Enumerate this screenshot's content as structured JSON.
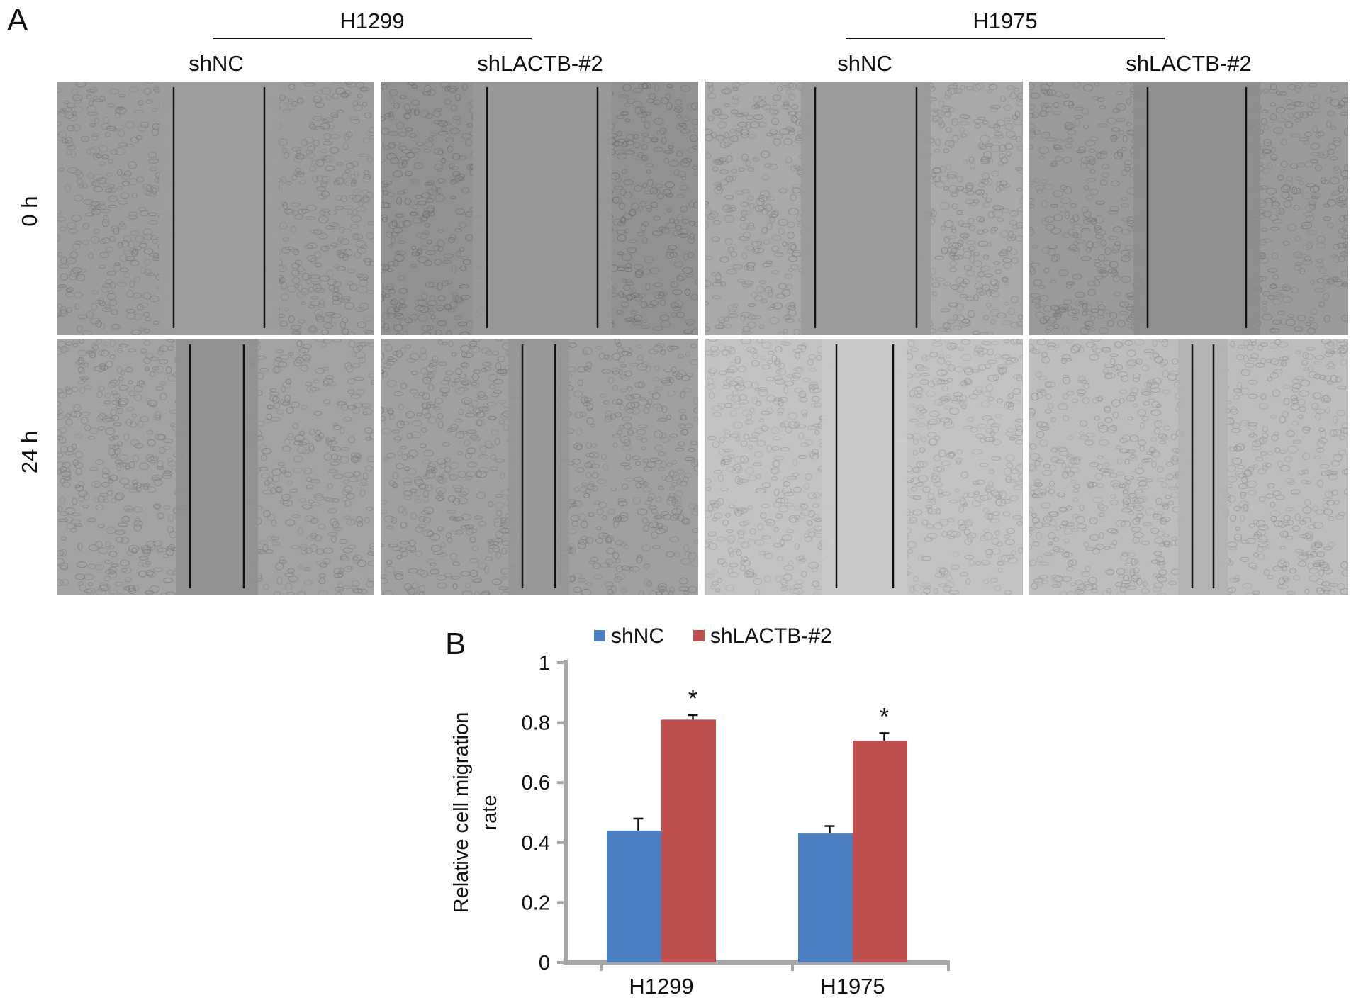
{
  "panel_a": {
    "letter": "A",
    "groups": [
      {
        "title": "H1299",
        "columns": [
          "shNC",
          "shLACTB-#2"
        ]
      },
      {
        "title": "H1975",
        "columns": [
          "shNC",
          "shLACTB-#2"
        ]
      }
    ],
    "rows": [
      "0 h",
      "24 h"
    ],
    "images": [
      {
        "row": 0,
        "col": 0,
        "tone": "#9c9c9c",
        "gap": "#9d9d9d",
        "cells": "#777777"
      },
      {
        "row": 0,
        "col": 1,
        "tone": "#929292",
        "gap": "#999999",
        "cells": "#6b6b6b"
      },
      {
        "row": 0,
        "col": 2,
        "tone": "#a9a9a9",
        "gap": "#9a9a9a",
        "cells": "#808080"
      },
      {
        "row": 0,
        "col": 3,
        "tone": "#9a9a9a",
        "gap": "#8d8d8d",
        "cells": "#747474"
      },
      {
        "row": 1,
        "col": 0,
        "tone": "#a3a3a3",
        "gap": "#8f8f8f",
        "cells": "#7a7a7a"
      },
      {
        "row": 1,
        "col": 1,
        "tone": "#a0a0a0",
        "gap": "#959595",
        "cells": "#777777"
      },
      {
        "row": 1,
        "col": 2,
        "tone": "#c3c3c3",
        "gap": "#cbcbcb",
        "cells": "#9a9a9a"
      },
      {
        "row": 1,
        "col": 3,
        "tone": "#bdbdbd",
        "gap": "#b3b3b3",
        "cells": "#909090"
      }
    ]
  },
  "panel_b": {
    "letter": "B"
  },
  "chart_data": {
    "type": "bar",
    "categories": [
      "H1299",
      "H1975"
    ],
    "series": [
      {
        "name": "shNC",
        "values": [
          0.44,
          0.43
        ],
        "errors": [
          0.04,
          0.025
        ],
        "color": "#4a7fc1"
      },
      {
        "name": "shLACTB-#2",
        "values": [
          0.81,
          0.74
        ],
        "errors": [
          0.015,
          0.025
        ],
        "color": "#c0504d"
      }
    ],
    "significance": [
      {
        "category": "H1299",
        "series": "shLACTB-#2",
        "mark": "*"
      },
      {
        "category": "H1975",
        "series": "shLACTB-#2",
        "mark": "*"
      }
    ],
    "ylabel_lines": [
      "Relative cell migration",
      "rate"
    ],
    "ylim": [
      0,
      1
    ],
    "yticks": [
      0,
      0.2,
      0.4,
      0.6,
      0.8,
      1
    ],
    "ytick_labels": [
      "0",
      "0.2",
      "0.4",
      "0.6",
      "0.8",
      "1"
    ],
    "legend_position": "top",
    "axis_color": "#a6a6a6"
  }
}
